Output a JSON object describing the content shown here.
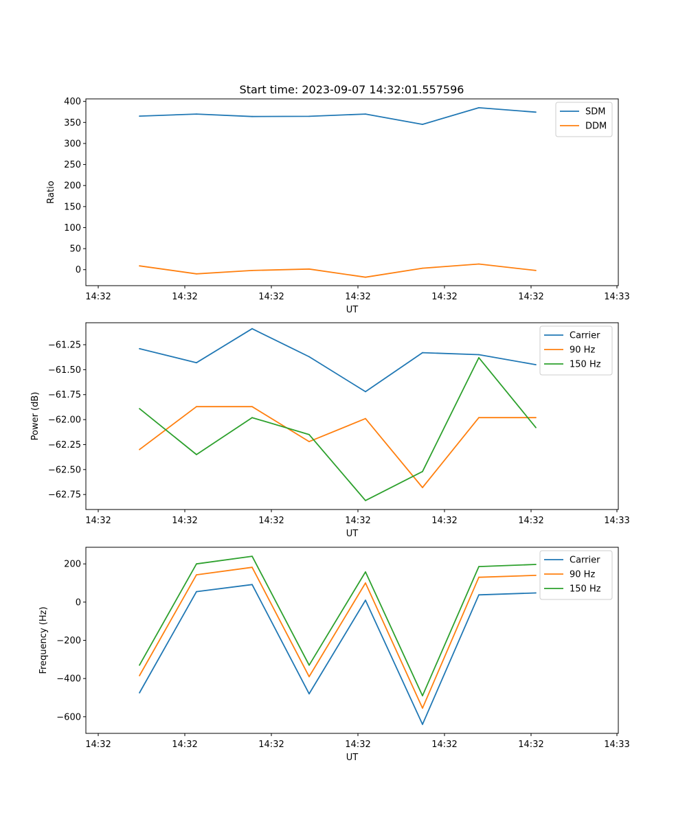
{
  "title": "Start time: 2023-09-07 14:32:01.557596",
  "colors": {
    "blue": "#1f77b4",
    "orange": "#ff7f0e",
    "green": "#2ca02c"
  },
  "chart_data": [
    {
      "type": "line",
      "title": "Start time: 2023-09-07 14:32:01.557596",
      "xlabel": "UT",
      "ylabel": "Ratio",
      "x_tick_labels": [
        "14:32",
        "14:32",
        "14:32",
        "14:32",
        "14:32",
        "14:32",
        "14:33"
      ],
      "y_ticks": [
        0,
        50,
        100,
        150,
        200,
        250,
        300,
        350,
        400
      ],
      "y_tick_labels": [
        "0",
        "50",
        "100",
        "150",
        "200",
        "250",
        "300",
        "350",
        "400"
      ],
      "ylim": [
        -38,
        406
      ],
      "legend_position": "top-right",
      "series": [
        {
          "name": "SDM",
          "color": "#1f77b4",
          "values": [
            365,
            370,
            364,
            364.5,
            370,
            345.5,
            385,
            374.5
          ]
        },
        {
          "name": "DDM",
          "color": "#ff7f0e",
          "values": [
            9,
            -10,
            -2,
            1.5,
            -18,
            3.5,
            13.5,
            -2
          ]
        }
      ]
    },
    {
      "type": "line",
      "title": "",
      "xlabel": "UT",
      "ylabel": "Power (dB)",
      "x_tick_labels": [
        "14:32",
        "14:32",
        "14:32",
        "14:32",
        "14:32",
        "14:32",
        "14:33"
      ],
      "y_ticks": [
        -61.25,
        -61.5,
        -61.75,
        -62.0,
        -62.25,
        -62.5,
        -62.75
      ],
      "y_tick_labels": [
        "−61.25",
        "−61.50",
        "−61.75",
        "−62.00",
        "−62.25",
        "−62.50",
        "−62.75"
      ],
      "ylim": [
        -62.9,
        -61.03
      ],
      "legend_position": "top-right",
      "series": [
        {
          "name": "Carrier",
          "color": "#1f77b4",
          "values": [
            -61.29,
            -61.43,
            -61.09,
            -61.37,
            -61.72,
            -61.33,
            -61.35,
            -61.45
          ]
        },
        {
          "name": "90 Hz",
          "color": "#ff7f0e",
          "values": [
            -62.3,
            -61.87,
            -61.87,
            -62.22,
            -61.99,
            -62.68,
            -61.98,
            -61.98
          ]
        },
        {
          "name": "150 Hz",
          "color": "#2ca02c",
          "values": [
            -61.89,
            -62.35,
            -61.98,
            -62.15,
            -62.81,
            -62.52,
            -61.38,
            -62.08
          ]
        }
      ]
    },
    {
      "type": "line",
      "title": "",
      "xlabel": "UT",
      "ylabel": "Frequency (Hz)",
      "x_tick_labels": [
        "14:32",
        "14:32",
        "14:32",
        "14:32",
        "14:32",
        "14:32",
        "14:33"
      ],
      "y_ticks": [
        200,
        0,
        -200,
        -400,
        -600
      ],
      "y_tick_labels": [
        "200",
        "0",
        "−200",
        "−400",
        "−600"
      ],
      "ylim": [
        -687,
        287
      ],
      "legend_position": "top-right",
      "series": [
        {
          "name": "Carrier",
          "color": "#1f77b4",
          "values": [
            -475,
            55,
            92,
            -480,
            10,
            -640,
            38,
            48
          ]
        },
        {
          "name": "90 Hz",
          "color": "#ff7f0e",
          "values": [
            -385,
            143,
            182,
            -390,
            100,
            -555,
            130,
            140
          ]
        },
        {
          "name": "150 Hz",
          "color": "#2ca02c",
          "values": [
            -330,
            200,
            240,
            -330,
            158,
            -490,
            186,
            197
          ]
        }
      ]
    }
  ]
}
